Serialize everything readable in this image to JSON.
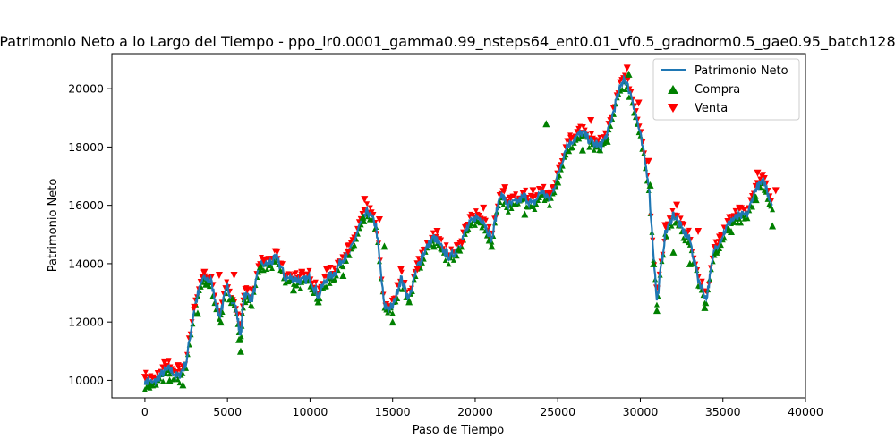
{
  "chart_data": {
    "type": "line",
    "title": "Patrimonio Neto a lo Largo del Tiempo - ppo_lr0.0001_gamma0.99_nsteps64_ent0.01_vf0.5_gradnorm0.5_gae0.95_batch128",
    "xlabel": "Paso de Tiempo",
    "ylabel": "Patrimonio Neto",
    "xlim": [
      -2000,
      40000
    ],
    "ylim": [
      9400,
      21200
    ],
    "xticks": [
      0,
      5000,
      10000,
      15000,
      20000,
      25000,
      30000,
      35000,
      40000
    ],
    "yticks": [
      10000,
      12000,
      14000,
      16000,
      18000,
      20000
    ],
    "xtick_labels": [
      "0",
      "5000",
      "10000",
      "15000",
      "20000",
      "25000",
      "30000",
      "35000",
      "40000"
    ],
    "ytick_labels": [
      "10000",
      "12000",
      "14000",
      "16000",
      "18000",
      "20000"
    ],
    "legend_position": "top-right",
    "series": [
      {
        "name": "Patrimonio Neto",
        "color": "#1f77b4",
        "x": [
          0,
          500,
          1000,
          1500,
          2000,
          2500,
          3000,
          3500,
          4000,
          4500,
          5000,
          5500,
          5800,
          6000,
          6500,
          7000,
          7500,
          8000,
          8500,
          9000,
          9500,
          10000,
          10500,
          11000,
          11500,
          12000,
          12500,
          13000,
          13500,
          14000,
          14500,
          15000,
          15500,
          16000,
          16500,
          17000,
          17500,
          18000,
          18500,
          19000,
          19500,
          20000,
          20500,
          21000,
          21500,
          22000,
          22500,
          23000,
          23500,
          24000,
          24500,
          25000,
          25500,
          26000,
          26500,
          27000,
          27500,
          28000,
          28500,
          29000,
          29500,
          30000,
          30500,
          31000,
          31500,
          32000,
          32500,
          33000,
          33500,
          34000,
          34500,
          35000,
          35500,
          36000,
          36500,
          37000,
          37500,
          38000
        ],
        "y": [
          10000,
          9900,
          10200,
          10400,
          10100,
          10600,
          12500,
          13500,
          13400,
          12200,
          13200,
          12500,
          11500,
          13000,
          12800,
          14000,
          14000,
          14200,
          13500,
          13500,
          13400,
          13500,
          12900,
          13500,
          13700,
          14200,
          14500,
          15300,
          15800,
          15300,
          12500,
          12500,
          13500,
          12800,
          13900,
          14500,
          14900,
          14500,
          14200,
          14600,
          15200,
          15600,
          15500,
          14800,
          16400,
          16000,
          16100,
          16300,
          16000,
          16500,
          16200,
          17000,
          18000,
          18300,
          18500,
          18200,
          18000,
          18400,
          19500,
          20400,
          19700,
          18400,
          16800,
          12700,
          15000,
          15700,
          15200,
          14800,
          13500,
          12800,
          14500,
          15000,
          15500,
          15600,
          15700,
          16600,
          16800,
          16000
        ]
      },
      {
        "name": "Compra",
        "color": "#008000",
        "marker": "triangle-up",
        "x": [
          300,
          1500,
          2300,
          3200,
          3700,
          4600,
          5300,
          5700,
          5800,
          7000,
          9000,
          10500,
          12000,
          13200,
          14500,
          15000,
          16000,
          17500,
          19000,
          21000,
          23000,
          24300,
          25000,
          26500,
          28000,
          29300,
          30600,
          30800,
          31000,
          32000,
          33000,
          33900,
          34600,
          35500,
          37000,
          38000
        ],
        "y": [
          9850,
          10000,
          9850,
          12300,
          13300,
          12000,
          12800,
          11400,
          11000,
          13900,
          13100,
          12700,
          13600,
          15600,
          14600,
          12000,
          12700,
          14600,
          14500,
          14600,
          15700,
          18800,
          16800,
          17900,
          18200,
          20500,
          16700,
          14000,
          12400,
          14400,
          14000,
          12500,
          14400,
          15100,
          16200,
          15300
        ]
      },
      {
        "name": "Venta",
        "color": "#ff0000",
        "marker": "triangle-down",
        "x": [
          0,
          1200,
          2000,
          3000,
          3600,
          4500,
          5400,
          6200,
          7200,
          8000,
          9500,
          11000,
          12300,
          13300,
          14200,
          15500,
          16500,
          17700,
          19200,
          20500,
          21800,
          23500,
          24500,
          25800,
          27000,
          29200,
          29900,
          30500,
          31500,
          32200,
          33500,
          34800,
          36000,
          37100,
          38200
        ],
        "y": [
          10100,
          10600,
          10500,
          12500,
          13700,
          13600,
          13600,
          13100,
          14100,
          14400,
          13700,
          13800,
          14400,
          16200,
          15500,
          13800,
          13800,
          15100,
          14700,
          15900,
          16600,
          16500,
          16400,
          18300,
          18900,
          20700,
          19500,
          17500,
          15300,
          16000,
          15100,
          14900,
          15900,
          17100,
          16500
        ]
      }
    ]
  }
}
